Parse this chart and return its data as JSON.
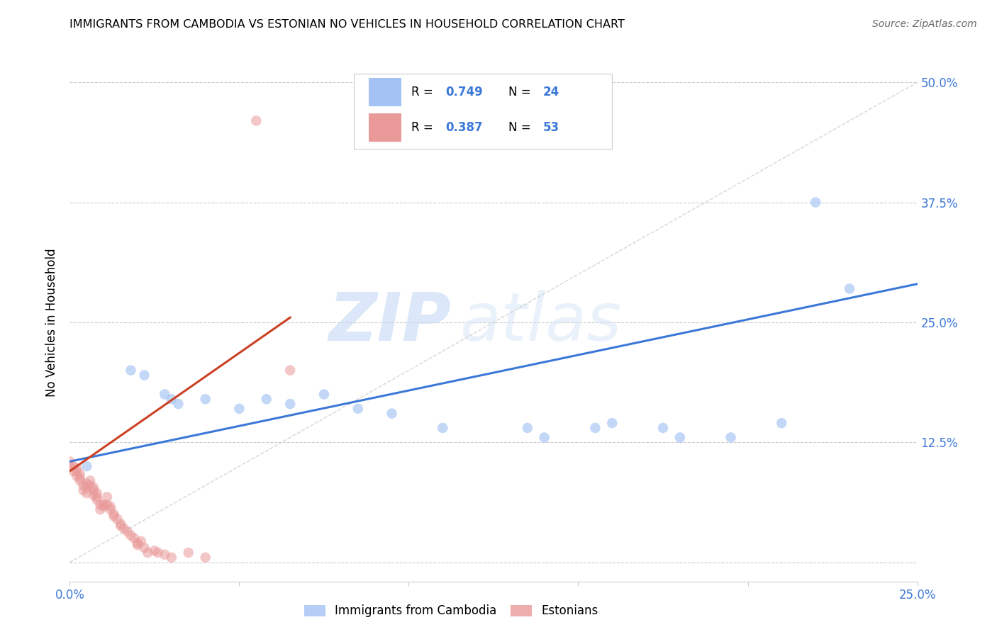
{
  "title": "IMMIGRANTS FROM CAMBODIA VS ESTONIAN NO VEHICLES IN HOUSEHOLD CORRELATION CHART",
  "source": "Source: ZipAtlas.com",
  "xlabel_blue": "Immigrants from Cambodia",
  "xlabel_pink": "Estonians",
  "ylabel": "No Vehicles in Household",
  "xlim": [
    0.0,
    0.25
  ],
  "ylim": [
    -0.02,
    0.52
  ],
  "xticks": [
    0.0,
    0.05,
    0.1,
    0.15,
    0.2,
    0.25
  ],
  "xtick_labels": [
    "0.0%",
    "",
    "",
    "",
    "",
    "25.0%"
  ],
  "yticks": [
    0.0,
    0.125,
    0.25,
    0.375,
    0.5
  ],
  "ytick_labels_right": [
    "",
    "12.5%",
    "25.0%",
    "37.5%",
    "50.0%"
  ],
  "legend_blue_r": "0.749",
  "legend_blue_n": "24",
  "legend_pink_r": "0.387",
  "legend_pink_n": "53",
  "blue_color": "#a4c2f4",
  "pink_color": "#ea9999",
  "trendline_blue_color": "#3c78d8",
  "trendline_pink_color": "#cc4125",
  "watermark_zip": "ZIP",
  "watermark_atlas": "atlas",
  "blue_scatter_x": [
    0.005,
    0.018,
    0.022,
    0.028,
    0.03,
    0.032,
    0.04,
    0.05,
    0.058,
    0.065,
    0.075,
    0.085,
    0.095,
    0.11,
    0.135,
    0.14,
    0.155,
    0.16,
    0.175,
    0.18,
    0.195,
    0.21,
    0.22,
    0.23
  ],
  "blue_scatter_y": [
    0.1,
    0.2,
    0.195,
    0.175,
    0.17,
    0.165,
    0.17,
    0.16,
    0.17,
    0.165,
    0.175,
    0.16,
    0.155,
    0.14,
    0.14,
    0.13,
    0.14,
    0.145,
    0.14,
    0.13,
    0.13,
    0.145,
    0.375,
    0.285
  ],
  "pink_scatter_x": [
    0.0,
    0.0,
    0.001,
    0.001,
    0.002,
    0.002,
    0.002,
    0.003,
    0.003,
    0.003,
    0.004,
    0.004,
    0.005,
    0.005,
    0.005,
    0.006,
    0.006,
    0.007,
    0.007,
    0.007,
    0.008,
    0.008,
    0.008,
    0.009,
    0.009,
    0.01,
    0.01,
    0.011,
    0.011,
    0.012,
    0.012,
    0.013,
    0.013,
    0.014,
    0.015,
    0.015,
    0.016,
    0.017,
    0.018,
    0.019,
    0.02,
    0.02,
    0.021,
    0.022,
    0.023,
    0.025,
    0.026,
    0.028,
    0.03,
    0.035,
    0.04,
    0.055,
    0.065
  ],
  "pink_scatter_y": [
    0.1,
    0.105,
    0.095,
    0.1,
    0.09,
    0.095,
    0.098,
    0.085,
    0.088,
    0.092,
    0.075,
    0.08,
    0.078,
    0.072,
    0.082,
    0.08,
    0.085,
    0.075,
    0.07,
    0.078,
    0.068,
    0.065,
    0.072,
    0.06,
    0.055,
    0.06,
    0.058,
    0.06,
    0.068,
    0.055,
    0.058,
    0.05,
    0.048,
    0.045,
    0.04,
    0.038,
    0.035,
    0.032,
    0.028,
    0.025,
    0.02,
    0.018,
    0.022,
    0.015,
    0.01,
    0.012,
    0.01,
    0.008,
    0.005,
    0.01,
    0.005,
    0.46,
    0.2
  ],
  "blue_trendline_x": [
    0.0,
    0.25
  ],
  "blue_trendline_y": [
    0.105,
    0.29
  ],
  "pink_trendline_x": [
    0.0,
    0.065
  ],
  "pink_trendline_y": [
    0.095,
    0.255
  ],
  "dashed_line_x": [
    0.0,
    0.25
  ],
  "dashed_line_y": [
    0.0,
    0.5
  ]
}
